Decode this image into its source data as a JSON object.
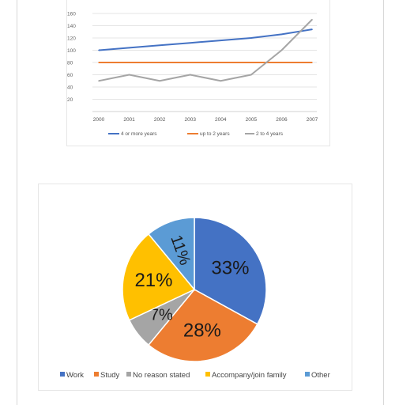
{
  "chart_data": [
    {
      "type": "line",
      "x": [
        "2000",
        "2001",
        "2002",
        "2003",
        "2004",
        "2005",
        "2006",
        "2007"
      ],
      "yticks": [
        "20",
        "40",
        "60",
        "80",
        "100",
        "120",
        "140",
        "160"
      ],
      "ylim": [
        0,
        160
      ],
      "series": [
        {
          "name": "4 or more years",
          "color": "#4472c4",
          "values": [
            100,
            104,
            108,
            112,
            116,
            120,
            126,
            134
          ]
        },
        {
          "name": "up to 2 years",
          "color": "#ed7d31",
          "values": [
            80,
            80,
            80,
            80,
            80,
            80,
            80,
            80
          ]
        },
        {
          "name": "2 to 4 years",
          "color": "#a5a5a5",
          "values": [
            50,
            60,
            50,
            60,
            50,
            60,
            100,
            150
          ]
        }
      ],
      "grid": true,
      "legend": "bottom"
    },
    {
      "type": "pie",
      "slices": [
        {
          "name": "Work",
          "value": 33,
          "label": "33%",
          "color": "#4472c4"
        },
        {
          "name": "Study",
          "value": 28,
          "label": "28%",
          "color": "#ed7d31"
        },
        {
          "name": "No reason stated",
          "value": 7,
          "label": "7%",
          "color": "#a5a5a5"
        },
        {
          "name": "Accompany/join family",
          "value": 21,
          "label": "21%",
          "color": "#ffc000"
        },
        {
          "name": "Other",
          "value": 11,
          "label": "11%",
          "color": "#5b9bd5"
        }
      ],
      "legend": "bottom"
    }
  ]
}
